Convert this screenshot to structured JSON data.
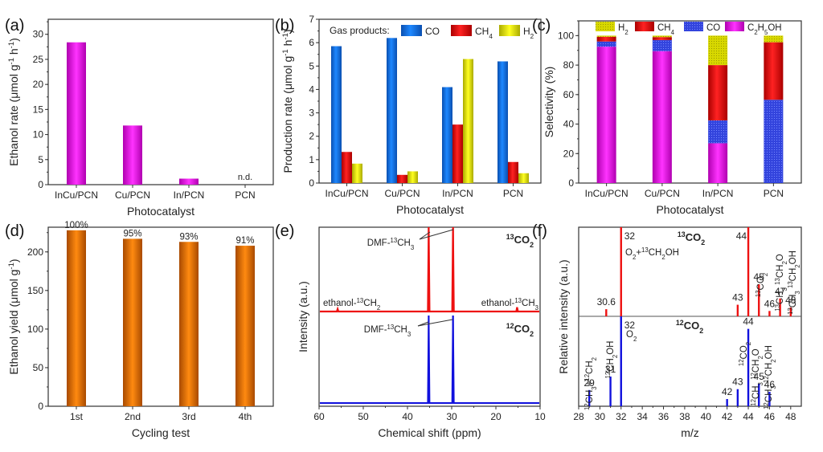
{
  "figure": {
    "panels": [
      "(a)",
      "(b)",
      "(c)",
      "(d)",
      "(e)",
      "(f)"
    ]
  },
  "chart_data": [
    {
      "id": "a",
      "panel_label": "(a)",
      "type": "bar",
      "title": "",
      "xlabel": "Photocatalyst",
      "ylabel": "Ethanol rate (μmol g⁻¹ h⁻¹)",
      "categories": [
        "InCu/PCN",
        "Cu/PCN",
        "In/PCN",
        "PCN"
      ],
      "values": [
        28.4,
        11.8,
        1.2,
        0
      ],
      "annotations": [
        {
          "category": "PCN",
          "text": "n.d."
        }
      ],
      "ylim": [
        0,
        33
      ],
      "yticks": [
        0,
        5,
        10,
        15,
        20,
        25,
        30
      ],
      "color": "#e600e6",
      "grid": false
    },
    {
      "id": "b",
      "panel_label": "(b)",
      "type": "bar",
      "title": "",
      "xlabel": "Photocatalyst",
      "ylabel": "Production rate (μmol g⁻¹ h⁻¹)",
      "categories": [
        "InCu/PCN",
        "Cu/PCN",
        "In/PCN",
        "PCN"
      ],
      "legend_title": "Gas products:",
      "legend_position": "top",
      "series": [
        {
          "name": "CO",
          "color": "#0a6be0",
          "values": [
            5.85,
            6.2,
            4.1,
            5.2
          ]
        },
        {
          "name": "CH₄",
          "color": "#dd1111",
          "values": [
            1.33,
            0.35,
            2.5,
            0.9
          ]
        },
        {
          "name": "H₂",
          "color": "#eeee00",
          "values": [
            0.83,
            0.5,
            5.3,
            0.42
          ]
        }
      ],
      "ylim": [
        0,
        7
      ],
      "yticks": [
        0,
        1,
        2,
        3,
        4,
        5,
        6,
        7
      ],
      "grid": false
    },
    {
      "id": "c",
      "panel_label": "(c)",
      "type": "bar",
      "stacked": true,
      "title": "",
      "xlabel": "Photocatalyst",
      "ylabel": "Selectivity (%)",
      "categories": [
        "InCu/PCN",
        "Cu/PCN",
        "In/PCN",
        "PCN"
      ],
      "legend_position": "top",
      "series": [
        {
          "name": "C₂H₅OH",
          "color": "#cc00cc",
          "values": [
            92.5,
            89.5,
            27,
            0
          ]
        },
        {
          "name": "CO",
          "color": "#3344dd",
          "values": [
            3.5,
            7.5,
            15.5,
            56.5
          ]
        },
        {
          "name": "CH₄",
          "color": "#dd1111",
          "values": [
            3.2,
            2.0,
            37.5,
            39
          ]
        },
        {
          "name": "H₂",
          "color": "#d8d800",
          "values": [
            0.8,
            1.0,
            20,
            4.5
          ]
        }
      ],
      "legend_order": [
        "H₂",
        "CH₄",
        "CO",
        "C₂H₅OH"
      ],
      "ylim": [
        0,
        110
      ],
      "yticks": [
        0,
        20,
        40,
        60,
        80,
        100
      ],
      "grid": false
    },
    {
      "id": "d",
      "panel_label": "(d)",
      "type": "bar",
      "title": "",
      "xlabel": "Cycling test",
      "ylabel": "Ethanol yield (μmol g⁻¹)",
      "categories": [
        "1st",
        "2nd",
        "3rd",
        "4th"
      ],
      "values": [
        228,
        217,
        213,
        208
      ],
      "data_labels": [
        "100%",
        "95%",
        "93%",
        "91%"
      ],
      "ylim": [
        0,
        232
      ],
      "yticks": [
        0,
        50,
        100,
        150,
        200
      ],
      "color": "#ff8000",
      "grid": false
    },
    {
      "id": "e",
      "panel_label": "(e)",
      "type": "line",
      "title": "",
      "xlabel": "Chemical shift (ppm)",
      "ylabel": "Intensity (a.u.)",
      "xlim": [
        60,
        10
      ],
      "xticks": [
        60,
        50,
        40,
        30,
        20,
        10
      ],
      "series": [
        {
          "name": "¹³CO₂",
          "color": "#ee1111",
          "peaks": [
            {
              "x": 55.8,
              "height": 0.03
            },
            {
              "x": 35.2,
              "height": 1.0
            },
            {
              "x": 29.7,
              "height": 1.0
            },
            {
              "x": 15.2,
              "height": 0.05
            }
          ]
        },
        {
          "name": "¹²CO₂",
          "color": "#1111dd",
          "peaks": [
            {
              "x": 35.2,
              "height": 1.0
            },
            {
              "x": 29.7,
              "height": 1.0
            }
          ]
        }
      ],
      "annotations": [
        {
          "text": "DMF-¹³CH₃",
          "series": "¹³CO₂",
          "points_to": [
            35.2,
            29.7
          ]
        },
        {
          "text": "ethanol-¹³CH₂",
          "series": "¹³CO₂",
          "x": 55.8
        },
        {
          "text": "ethanol-¹³CH₃",
          "series": "¹³CO₂",
          "x": 15.2
        },
        {
          "text": "DMF-¹³CH₃",
          "series": "¹²CO₂",
          "points_to": [
            35.2,
            29.7
          ]
        }
      ],
      "grid": false
    },
    {
      "id": "f",
      "panel_label": "(f)",
      "type": "bar",
      "subtype": "stick-spectrum",
      "title": "",
      "xlabel": "m/z",
      "ylabel": "Relative intensity (a.u.)",
      "xlim": [
        28,
        49
      ],
      "xticks": [
        28,
        30,
        32,
        34,
        36,
        38,
        40,
        42,
        44,
        46,
        48
      ],
      "series": [
        {
          "name": "¹³CO₂",
          "color": "#ee1111",
          "x": [
            30.6,
            32,
            43,
            44,
            45,
            46,
            47,
            48
          ],
          "values": [
            0.08,
            1.0,
            0.13,
            1.0,
            0.36,
            0.06,
            0.2,
            0.1
          ],
          "labels": [
            "30.6",
            "32",
            "43",
            "44",
            "45",
            "46",
            "47",
            "48"
          ]
        },
        {
          "name": "¹²CO₂",
          "color": "#1111dd",
          "x": [
            29,
            31,
            32,
            42,
            43,
            44,
            45,
            46
          ],
          "values": [
            0.18,
            0.33,
            1.0,
            0.08,
            0.19,
            0.86,
            0.25,
            0.16
          ],
          "labels": [
            "29",
            "31",
            "32",
            "42",
            "43",
            "44",
            "45",
            "46"
          ]
        }
      ],
      "annotations": [
        {
          "text": "O₂+¹³CH₂OH",
          "series": "¹³CO₂",
          "x": 32,
          "color": "#222222"
        },
        {
          "text": "¹³CO₂",
          "series": "¹³CO₂",
          "x": 45,
          "color": "#339933",
          "rotated": true
        },
        {
          "text": "¹³CH₃ ¹³CH₂O",
          "series": "¹³CO₂",
          "x": 47,
          "color": "#339933",
          "rotated": true
        },
        {
          "text": "¹³CH₃ ¹³CH₂OH",
          "series": "¹³CO₂",
          "x": 48,
          "color": "#339933",
          "rotated": true
        },
        {
          "text": "O₂",
          "series": "¹²CO₂",
          "x": 32,
          "color": "#222222"
        },
        {
          "text": "¹²CH₃+¹²CH₂",
          "series": "¹²CO₂",
          "x": 29,
          "color": "#e020e0",
          "rotated": true
        },
        {
          "text": "¹²CH₂OH",
          "series": "¹²CO₂",
          "x": 31,
          "color": "#e020e0",
          "rotated": true
        },
        {
          "text": "¹²CO₂",
          "series": "¹²CO₂",
          "x": 44,
          "color": "#e020e0",
          "rotated": true
        },
        {
          "text": "¹²CH₃ ¹²CH₂O",
          "series": "¹²CO₂",
          "x": 45,
          "color": "#e020e0",
          "rotated": true
        },
        {
          "text": "¹²CH₃ ¹²CH₂OH",
          "series": "¹²CO₂",
          "x": 46,
          "color": "#e020e0",
          "rotated": true
        }
      ],
      "grid": false
    }
  ]
}
